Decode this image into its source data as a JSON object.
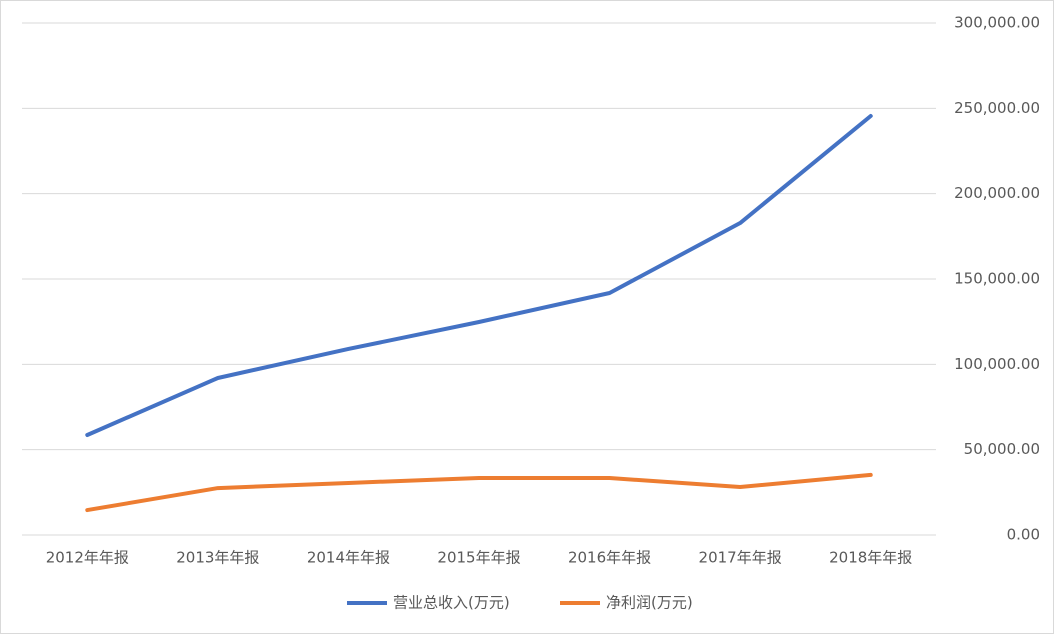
{
  "chart_data": {
    "type": "line",
    "categories": [
      "2012年年报",
      "2013年年报",
      "2014年年报",
      "2015年年报",
      "2016年年报",
      "2017年年报",
      "2018年年报"
    ],
    "series": [
      {
        "name": "营业总收入(万元)",
        "color": "#4472c4",
        "values": [
          58600,
          92000,
          109000,
          124800,
          141800,
          182800,
          245500
        ]
      },
      {
        "name": "净利润(万元)",
        "color": "#ed7d31",
        "values": [
          14600,
          27500,
          30500,
          33400,
          33400,
          28100,
          35200
        ]
      }
    ],
    "ylim": [
      0,
      300000
    ],
    "yticks": [
      {
        "value": 0,
        "label": "0.00"
      },
      {
        "value": 50000,
        "label": "50,000.00"
      },
      {
        "value": 100000,
        "label": "100,000.00"
      },
      {
        "value": 150000,
        "label": "150,000.00"
      },
      {
        "value": 200000,
        "label": "200,000.00"
      },
      {
        "value": 250000,
        "label": "250,000.00"
      },
      {
        "value": 300000,
        "label": "300,000.00"
      }
    ],
    "grid": true,
    "legend": "bottom"
  }
}
